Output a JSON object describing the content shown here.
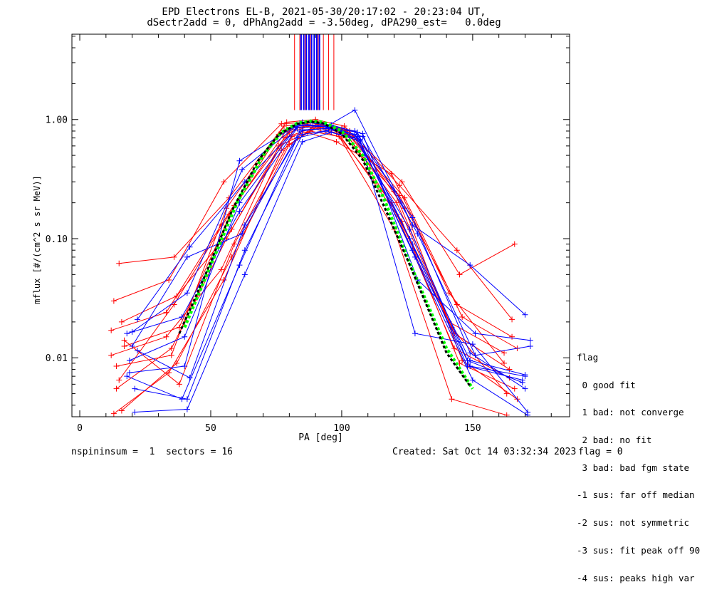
{
  "header": {
    "title_line1": "EPD Electrons EL-B, 2021-05-30/20:17:02 - 20:23:04 UT,",
    "title_line2": "dSectr2add = 0, dPhAng2add = -3.50deg, dPA290_est=   0.0deg"
  },
  "footer": {
    "left": "nspininsum =  1  sectors = 16",
    "created": "Created: Sat Oct 14 03:32:34 2023",
    "flag": "flag = 0"
  },
  "legend": {
    "title": "flag",
    "items": [
      " 0 good fit",
      " 1 bad: not converge",
      " 2 bad: no fit",
      " 3 bad: bad fgm state",
      "-1 sus: far off median",
      "-2 sus: not symmetric",
      "-3 sus: fit peak off 90",
      "-4 sus: peaks high var"
    ]
  },
  "colors": {
    "axes": "#000000",
    "red_series": "#ff0000",
    "blue_series": "#0000ff",
    "fit_green": "#00ff00",
    "fit_black": "#000000"
  },
  "chart_data": {
    "type": "line",
    "title": "EPD Electrons EL-B, 2021-05-30/20:17:02 - 20:23:04 UT,",
    "subtitle": "dSectr2add = 0, dPhAng2add = -3.50deg, dPA290_est=   0.0deg",
    "xlabel": "PA [deg]",
    "ylabel": "mflux [#/(cm^2 s sr MeV)]",
    "xlim": [
      -3,
      187
    ],
    "ylim": [
      0.0032,
      5.2
    ],
    "yscale": "log",
    "x_ticks": [
      "0",
      "50",
      "100",
      "150"
    ],
    "y_ticks": [
      "0.01",
      "0.10",
      "1.00"
    ],
    "series": [
      {
        "color": "red",
        "x": [
          12,
          33,
          54,
          76,
          87,
          98,
          119,
          141,
          162
        ],
        "y": [
          0.017,
          0.024,
          0.13,
          0.75,
          0.9,
          0.77,
          0.2,
          0.02,
          0.011
        ]
      },
      {
        "color": "red",
        "x": [
          13,
          34,
          55,
          77,
          88,
          99,
          120,
          142,
          163
        ],
        "y": [
          0.03,
          0.045,
          0.3,
          0.92,
          0.95,
          0.8,
          0.25,
          0.018,
          0.005
        ]
      },
      {
        "color": "red",
        "x": [
          14,
          35,
          56,
          78,
          89,
          100,
          121,
          143,
          164
        ],
        "y": [
          0.0055,
          0.012,
          0.1,
          0.7,
          0.85,
          0.7,
          0.16,
          0.012,
          0.0068
        ]
      },
      {
        "color": "red",
        "x": [
          15,
          36,
          57,
          79,
          90,
          101,
          122,
          144,
          165
        ],
        "y": [
          0.0065,
          0.028,
          0.16,
          0.82,
          0.97,
          0.82,
          0.23,
          0.028,
          0.015
        ]
      },
      {
        "color": "red",
        "x": [
          16,
          37,
          58,
          80,
          91,
          102,
          123,
          145,
          166
        ],
        "y": [
          0.0036,
          0.009,
          0.07,
          0.62,
          0.88,
          0.75,
          0.14,
          0.009,
          0.0055
        ]
      },
      {
        "color": "red",
        "x": [
          17,
          38,
          59,
          81,
          92,
          103,
          124,
          146,
          167
        ],
        "y": [
          0.0125,
          0.018,
          0.19,
          0.85,
          0.9,
          0.8,
          0.18,
          0.0095,
          0.0045
        ]
      },
      {
        "color": "red",
        "x": [
          12,
          33,
          54,
          76,
          87,
          98,
          119,
          141,
          162
        ],
        "y": [
          0.0105,
          0.015,
          0.055,
          0.6,
          0.78,
          0.65,
          0.35,
          0.035,
          0.009
        ]
      },
      {
        "color": "red",
        "x": [
          15,
          36,
          57,
          79,
          90,
          101,
          122,
          144,
          165
        ],
        "y": [
          0.062,
          0.07,
          0.22,
          0.95,
          1.0,
          0.88,
          0.28,
          0.08,
          0.021
        ]
      },
      {
        "color": "red",
        "x": [
          13,
          34,
          55,
          77,
          88,
          99,
          120,
          142,
          163
        ],
        "y": [
          0.0034,
          0.0075,
          0.045,
          0.55,
          0.8,
          0.72,
          0.12,
          0.0045,
          0.0033
        ]
      },
      {
        "color": "red",
        "x": [
          16,
          37,
          58,
          80,
          91,
          102,
          123,
          145,
          166
        ],
        "y": [
          0.02,
          0.033,
          0.12,
          0.78,
          0.92,
          0.8,
          0.3,
          0.05,
          0.09
        ]
      },
      {
        "color": "red",
        "x": [
          14,
          35,
          56,
          78,
          89,
          100,
          121,
          143,
          164
        ],
        "y": [
          0.0085,
          0.0105,
          0.18,
          0.88,
          0.94,
          0.85,
          0.2,
          0.016,
          0.008
        ]
      },
      {
        "color": "red",
        "x": [
          17,
          38,
          59,
          81,
          92,
          103,
          124,
          146,
          167
        ],
        "y": [
          0.014,
          0.006,
          0.09,
          0.72,
          0.86,
          0.74,
          0.22,
          0.022,
          0.012
        ]
      },
      {
        "color": "blue",
        "x": [
          18,
          39,
          61,
          83,
          94,
          105,
          126,
          148,
          169
        ],
        "y": [
          0.016,
          0.022,
          0.17,
          0.85,
          0.88,
          0.75,
          0.1,
          0.0085,
          0.0065
        ]
      },
      {
        "color": "blue",
        "x": [
          19,
          40,
          61,
          83,
          94,
          105,
          127,
          149,
          170
        ],
        "y": [
          0.0075,
          0.0085,
          0.45,
          0.9,
          0.87,
          1.2,
          0.13,
          0.06,
          0.023
        ]
      },
      {
        "color": "blue",
        "x": [
          20,
          41,
          62,
          84,
          95,
          106,
          127,
          149,
          170
        ],
        "y": [
          0.0125,
          0.07,
          0.11,
          0.8,
          0.85,
          0.72,
          0.08,
          0.0085,
          0.007
        ]
      },
      {
        "color": "blue",
        "x": [
          21,
          41,
          63,
          85,
          96,
          107,
          128,
          150,
          171
        ],
        "y": [
          0.0055,
          0.0045,
          0.08,
          0.75,
          0.82,
          0.68,
          0.016,
          0.013,
          0.0035
        ]
      },
      {
        "color": "blue",
        "x": [
          22,
          42,
          63,
          85,
          96,
          108,
          129,
          151,
          172
        ],
        "y": [
          0.021,
          0.085,
          0.3,
          0.95,
          0.9,
          0.76,
          0.045,
          0.016,
          0.014
        ]
      },
      {
        "color": "blue",
        "x": [
          18,
          39,
          61,
          83,
          94,
          105,
          126,
          148,
          169
        ],
        "y": [
          0.007,
          0.0045,
          0.06,
          0.7,
          0.8,
          0.7,
          0.12,
          0.0095,
          0.0062
        ]
      },
      {
        "color": "blue",
        "x": [
          19,
          40,
          61,
          83,
          94,
          105,
          127,
          149,
          170
        ],
        "y": [
          0.0095,
          0.015,
          0.2,
          0.88,
          0.9,
          0.8,
          0.15,
          0.011,
          0.0055
        ]
      },
      {
        "color": "blue",
        "x": [
          20,
          41,
          62,
          84,
          95,
          106,
          127,
          149,
          170
        ],
        "y": [
          0.0165,
          0.035,
          0.38,
          0.93,
          0.86,
          0.78,
          0.09,
          0.0095,
          0.0072
        ]
      },
      {
        "color": "blue",
        "x": [
          21,
          41,
          63,
          85,
          96,
          107,
          128,
          150,
          171
        ],
        "y": [
          0.0035,
          0.0037,
          0.05,
          0.65,
          0.78,
          0.66,
          0.07,
          0.0065,
          0.0033
        ]
      },
      {
        "color": "blue",
        "x": [
          22,
          42,
          63,
          85,
          96,
          108,
          129,
          151,
          172
        ],
        "y": [
          0.0115,
          0.0068,
          0.13,
          0.82,
          0.84,
          0.72,
          0.11,
          0.0105,
          0.0125
        ]
      }
    ],
    "fit_curves": [
      {
        "color": "green",
        "style": "dashed",
        "x": [
          40,
          50,
          60,
          70,
          77,
          83,
          88,
          93,
          100,
          108,
          116,
          125,
          140,
          150
        ],
        "y": [
          0.018,
          0.06,
          0.2,
          0.5,
          0.78,
          0.93,
          0.97,
          0.95,
          0.8,
          0.5,
          0.22,
          0.07,
          0.012,
          0.0055
        ]
      },
      {
        "color": "black",
        "style": "dashed",
        "x": [
          38,
          48,
          58,
          68,
          76,
          83,
          88,
          93,
          100,
          108,
          116,
          126,
          140,
          149
        ],
        "y": [
          0.016,
          0.05,
          0.17,
          0.45,
          0.75,
          0.92,
          0.96,
          0.93,
          0.76,
          0.46,
          0.19,
          0.06,
          0.011,
          0.0058
        ]
      }
    ],
    "vertical_markers": {
      "y_from": 1.2,
      "red_x": [
        82,
        84,
        86,
        88,
        89.5,
        91,
        93,
        95,
        97
      ],
      "blue_x": [
        84.5,
        85.5,
        86.5,
        87.5,
        88.5,
        89.5,
        90.5,
        91.5
      ]
    },
    "grid": false,
    "legend_placement": "right-bottom, outside plot"
  }
}
